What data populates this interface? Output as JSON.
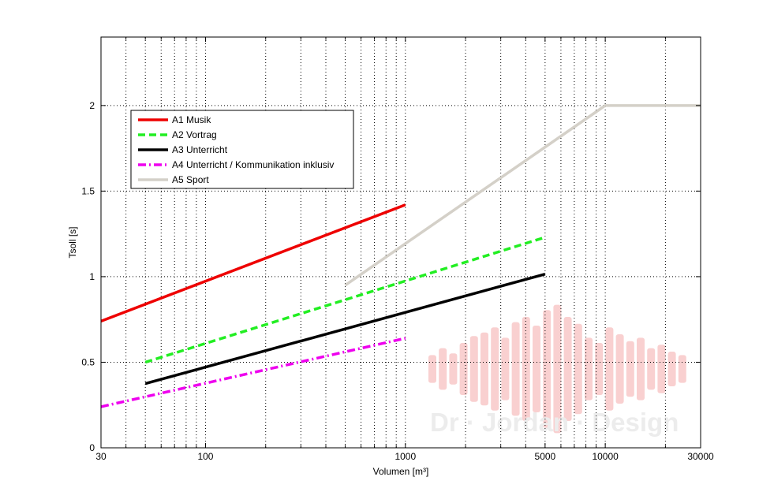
{
  "chart_data": {
    "type": "line",
    "title": "",
    "xlabel": "Volumen [m³]",
    "ylabel": "Tsoll [s]",
    "x_scale": "log",
    "xlim": [
      30,
      30000
    ],
    "ylim": [
      0,
      2.4
    ],
    "x_ticks": [
      30,
      100,
      1000,
      5000,
      10000,
      30000
    ],
    "x_tick_labels": [
      "30",
      "100",
      "1000",
      "5000",
      "10000",
      "30000"
    ],
    "y_ticks": [
      0,
      0.5,
      1,
      1.5,
      2
    ],
    "y_tick_labels": [
      "0",
      "0.5",
      "1",
      "1.5",
      "2"
    ],
    "grid": true,
    "legend_position": "top-left",
    "series": [
      {
        "name": "A1 Musik",
        "color": "#ee0000",
        "dash": "solid",
        "points": [
          [
            30,
            0.74
          ],
          [
            1000,
            1.42
          ]
        ]
      },
      {
        "name": "A2 Vortrag",
        "color": "#22ee22",
        "dash": "dashed",
        "points": [
          [
            50,
            0.5
          ],
          [
            5000,
            1.23
          ]
        ]
      },
      {
        "name": "A3 Unterricht",
        "color": "#000000",
        "dash": "solid",
        "points": [
          [
            50,
            0.375
          ],
          [
            5000,
            1.015
          ]
        ]
      },
      {
        "name": "A4 Unterricht / Kommunikation inklusiv",
        "color": "#ee00ee",
        "dash": "dashdot",
        "points": [
          [
            30,
            0.24
          ],
          [
            1000,
            0.64
          ]
        ]
      },
      {
        "name": "A5 Sport",
        "color": "#d4d0c8",
        "dash": "solid",
        "points": [
          [
            500,
            0.95
          ],
          [
            10000,
            2.0
          ],
          [
            30000,
            2.0
          ]
        ]
      }
    ],
    "watermark": "Dr · Jordan · Design",
    "watermark_color": "#f9d0d0"
  }
}
